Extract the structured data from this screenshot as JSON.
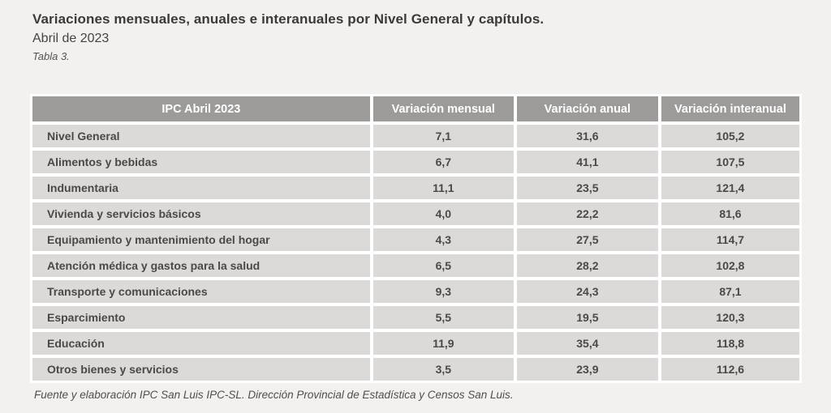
{
  "page": {
    "title": "Variaciones mensuales, anuales e interanuales por Nivel General y capítulos.",
    "subtitle": "Abril de 2023",
    "caption": "Tabla 3.",
    "footer": "Fuente y elaboración IPC San Luis IPC-SL. Dirección Provincial de Estadística y Censos San Luis."
  },
  "colors": {
    "page_bg": "#f2f1f0",
    "header_bg": "#9c9b9a",
    "cell_bg": "#dbdad9",
    "header_text": "#ffffff",
    "body_text": "#4a4948"
  },
  "table": {
    "columns": [
      "IPC Abril 2023",
      "Variación mensual",
      "Variación anual",
      "Variación interanual"
    ],
    "rows": [
      {
        "label": "Nivel General",
        "mensual": "7,1",
        "anual": "31,6",
        "interanual": "105,2"
      },
      {
        "label": "Alimentos y bebidas",
        "mensual": "6,7",
        "anual": "41,1",
        "interanual": "107,5"
      },
      {
        "label": "Indumentaria",
        "mensual": "11,1",
        "anual": "23,5",
        "interanual": "121,4"
      },
      {
        "label": "Vivienda y servicios básicos",
        "mensual": "4,0",
        "anual": "22,2",
        "interanual": "81,6"
      },
      {
        "label": "Equipamiento y mantenimiento del hogar",
        "mensual": "4,3",
        "anual": "27,5",
        "interanual": "114,7"
      },
      {
        "label": "Atención médica y gastos para la salud",
        "mensual": "6,5",
        "anual": "28,2",
        "interanual": "102,8"
      },
      {
        "label": "Transporte y comunicaciones",
        "mensual": "9,3",
        "anual": "24,3",
        "interanual": "87,1"
      },
      {
        "label": "Esparcimiento",
        "mensual": "5,5",
        "anual": "19,5",
        "interanual": "120,3"
      },
      {
        "label": "Educación",
        "mensual": "11,9",
        "anual": "35,4",
        "interanual": "118,8"
      },
      {
        "label": "Otros bienes y servicios",
        "mensual": "3,5",
        "anual": "23,9",
        "interanual": "112,6"
      }
    ]
  },
  "chart_data": {
    "type": "table",
    "title": "Variaciones mensuales, anuales e interanuales por Nivel General y capítulos. Abril de 2023",
    "categories": [
      "Nivel General",
      "Alimentos y bebidas",
      "Indumentaria",
      "Vivienda y servicios básicos",
      "Equipamiento y mantenimiento del hogar",
      "Atención médica y gastos para la salud",
      "Transporte y comunicaciones",
      "Esparcimiento",
      "Educación",
      "Otros bienes y servicios"
    ],
    "series": [
      {
        "name": "Variación mensual",
        "values": [
          7.1,
          6.7,
          11.1,
          4.0,
          4.3,
          6.5,
          9.3,
          5.5,
          11.9,
          3.5
        ]
      },
      {
        "name": "Variación anual",
        "values": [
          31.6,
          41.1,
          23.5,
          22.2,
          27.5,
          28.2,
          24.3,
          19.5,
          35.4,
          23.9
        ]
      },
      {
        "name": "Variación interanual",
        "values": [
          105.2,
          107.5,
          121.4,
          81.6,
          114.7,
          102.8,
          87.1,
          120.3,
          118.8,
          112.6
        ]
      }
    ]
  }
}
